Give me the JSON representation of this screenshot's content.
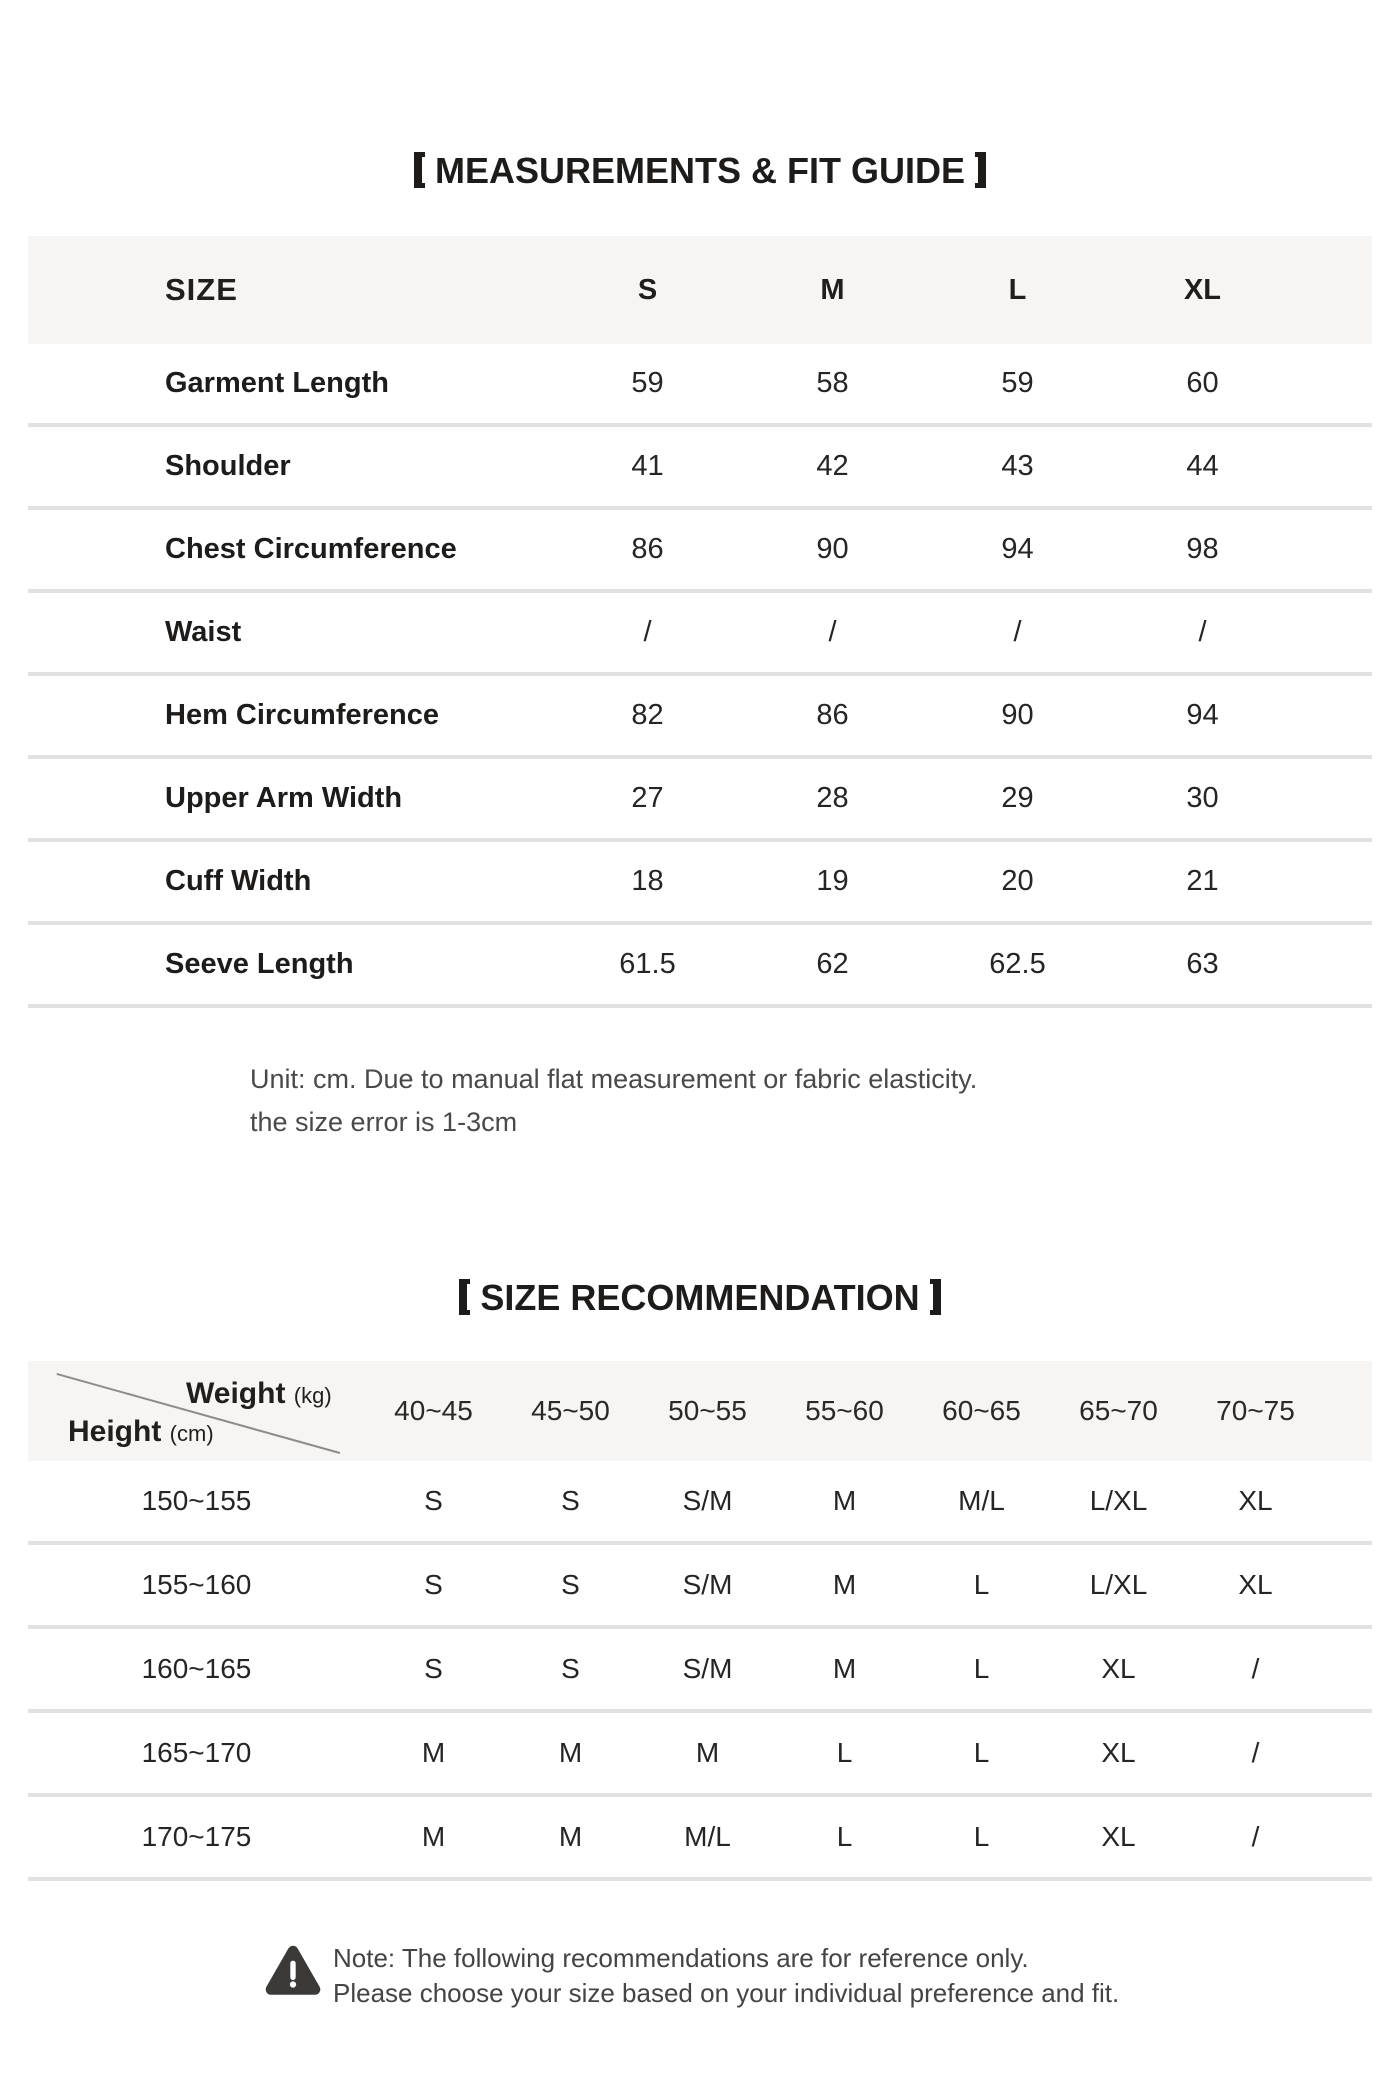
{
  "measurements": {
    "title": "【MEASUREMENTS & FIT GUIDE】",
    "title_text": "MEASUREMENTS & FIT GUIDE",
    "header": {
      "label": "SIZE",
      "sizes": [
        "S",
        "M",
        "L",
        "XL"
      ]
    },
    "rows": [
      {
        "label": "Garment Length",
        "values": [
          "59",
          "58",
          "59",
          "60"
        ]
      },
      {
        "label": "Shoulder",
        "values": [
          "41",
          "42",
          "43",
          "44"
        ]
      },
      {
        "label": "Chest Circumference",
        "values": [
          "86",
          "90",
          "94",
          "98"
        ]
      },
      {
        "label": "Waist",
        "values": [
          "/",
          "/",
          "/",
          "/"
        ]
      },
      {
        "label": "Hem Circumference",
        "values": [
          "82",
          "86",
          "90",
          "94"
        ]
      },
      {
        "label": "Upper Arm Width",
        "values": [
          "27",
          "28",
          "29",
          "30"
        ]
      },
      {
        "label": "Cuff Width",
        "values": [
          "18",
          "19",
          "20",
          "21"
        ]
      },
      {
        "label": "Seeve Length",
        "values": [
          "61.5",
          "62",
          "62.5",
          "63"
        ]
      }
    ],
    "note_line1": "Unit: cm. Due to manual flat measurement or fabric elasticity.",
    "note_line2": "the size error is 1-3cm"
  },
  "recommendation": {
    "title": "【SIZE RECOMMENDATION】",
    "title_text": "SIZE RECOMMENDATION",
    "corner": {
      "top_label": "Weight",
      "top_unit": "(kg)",
      "bottom_label": "Height",
      "bottom_unit": "(cm)"
    },
    "weight_columns": [
      "40~45",
      "45~50",
      "50~55",
      "55~60",
      "60~65",
      "65~70",
      "70~75"
    ],
    "rows": [
      {
        "height": "150~155",
        "values": [
          "S",
          "S",
          "S/M",
          "M",
          "M/L",
          "L/XL",
          "XL"
        ]
      },
      {
        "height": "155~160",
        "values": [
          "S",
          "S",
          "S/M",
          "M",
          "L",
          "L/XL",
          "XL"
        ]
      },
      {
        "height": "160~165",
        "values": [
          "S",
          "S",
          "S/M",
          "M",
          "L",
          "XL",
          "/"
        ]
      },
      {
        "height": "165~170",
        "values": [
          "M",
          "M",
          "M",
          "L",
          "L",
          "XL",
          "/"
        ]
      },
      {
        "height": "170~175",
        "values": [
          "M",
          "M",
          "M/L",
          "L",
          "L",
          "XL",
          "/"
        ]
      }
    ],
    "note_line1": "Note: The following recommendations are for reference only.",
    "note_line2": "Please choose your size based on your individual preference and fit.",
    "warning_icon": "exclamation-triangle"
  },
  "colors": {
    "text": "#201f1e",
    "note_text": "#4a4948",
    "header_bg": "#f6f5f3",
    "row_divider": "#e2e1df",
    "diagonal_line": "#8c8c8c",
    "warning_icon": "#3b3a39"
  }
}
